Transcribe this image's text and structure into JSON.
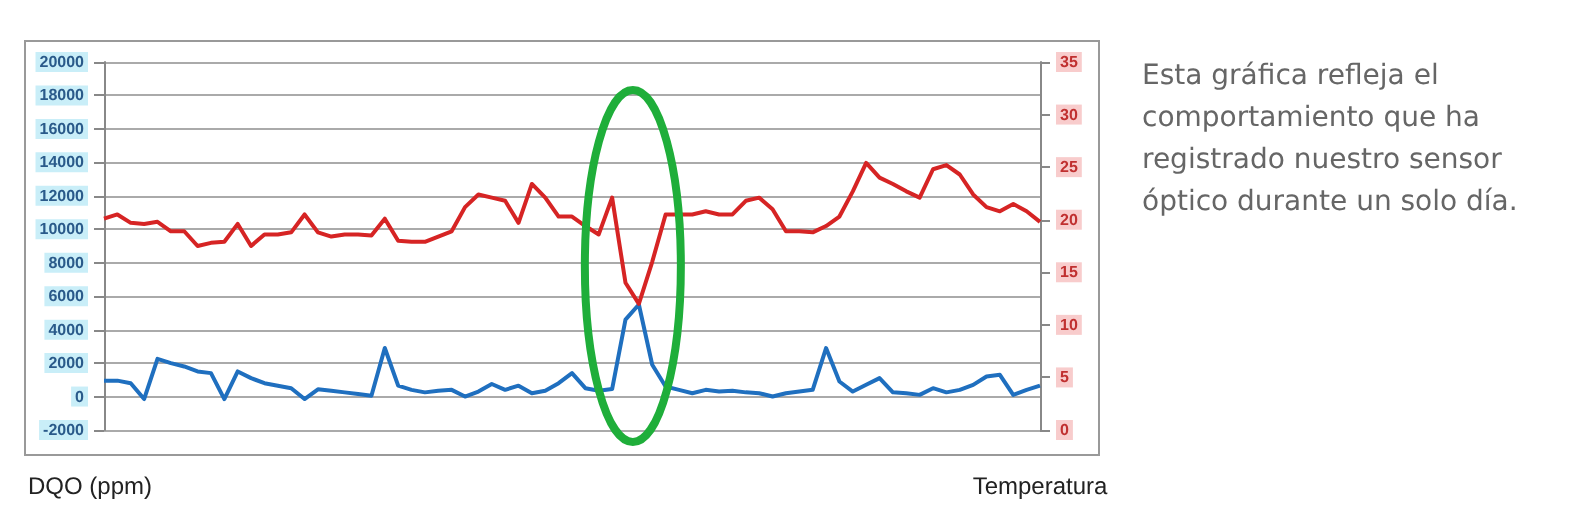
{
  "chart_data": {
    "type": "line",
    "ylabel": "DQO (ppm)",
    "y2label": "Temperatura",
    "annotations": [
      "Esta gráfica refleja el comportamiento que ha registrado nuestro sensor óptico durante un solo día."
    ],
    "categories": [
      null,
      null,
      null,
      null,
      null,
      null,
      null,
      null,
      null,
      null,
      null,
      null,
      null,
      null,
      null,
      null,
      null,
      null,
      null,
      null,
      null,
      null,
      null,
      null,
      null,
      null,
      null,
      null,
      null,
      null,
      null,
      null,
      null,
      null,
      null,
      null,
      null,
      null,
      null,
      null,
      null,
      null,
      null,
      null,
      null,
      null,
      null,
      null,
      null,
      null,
      null,
      null,
      null,
      null,
      null,
      null,
      null,
      null,
      null,
      null,
      null,
      null,
      null,
      null,
      null,
      null,
      null,
      null,
      null,
      null,
      null
    ],
    "series": [
      {
        "color": "#1f6fbf",
        "values": [
          950,
          950,
          800,
          -150,
          2250,
          2000,
          1800,
          1500,
          1400,
          -150,
          1500,
          1100,
          800,
          650,
          500,
          -150,
          430,
          350,
          250,
          150,
          50,
          2900,
          650,
          400,
          250,
          350,
          400,
          0,
          300,
          750,
          400,
          650,
          200,
          350,
          800,
          1400,
          500,
          350,
          450,
          4600,
          5500,
          1900,
          600,
          400,
          200,
          400,
          300,
          350,
          250,
          200,
          0,
          200,
          300,
          400,
          2900,
          900,
          300,
          700,
          1100,
          250,
          200,
          100,
          500,
          250,
          400,
          700,
          1200,
          1300,
          100,
          400,
          650
        ]
      },
      {
        "color": "#d62424",
        "axis": "y2",
        "values": [
          20.1,
          20.5,
          19.7,
          19.6,
          19.8,
          18.9,
          18.9,
          17.5,
          17.8,
          17.9,
          19.6,
          17.5,
          18.6,
          18.6,
          18.8,
          20.5,
          18.8,
          18.4,
          18.6,
          18.6,
          18.5,
          20.1,
          18.0,
          17.9,
          17.9,
          18.4,
          18.9,
          21.2,
          22.4,
          22.1,
          21.8,
          19.7,
          23.4,
          22.1,
          20.3,
          20.3,
          19.4,
          18.6,
          22.1,
          14,
          12,
          16,
          20.5,
          20.5,
          20.5,
          20.8,
          20.5,
          20.5,
          21.8,
          22.1,
          21,
          18.9,
          18.9,
          18.8,
          19.4,
          20.3,
          22.7,
          25.4,
          24.0,
          23.4,
          22.7,
          22.1,
          24.8,
          25.2,
          24.3,
          22.4,
          21.2,
          20.8,
          21.5,
          20.8,
          19.8
        ]
      }
    ],
    "ylim": [
      -2000,
      20000
    ],
    "yticks": [
      -2000,
      0,
      2000,
      4000,
      6000,
      8000,
      10000,
      12000,
      14000,
      16000,
      18000,
      20000
    ],
    "y2lim": [
      0,
      35
    ],
    "y2ticks": [
      0,
      5,
      10,
      15,
      20,
      25,
      30,
      35
    ],
    "grid": "y",
    "marker": "none",
    "line_style": "solid"
  }
}
